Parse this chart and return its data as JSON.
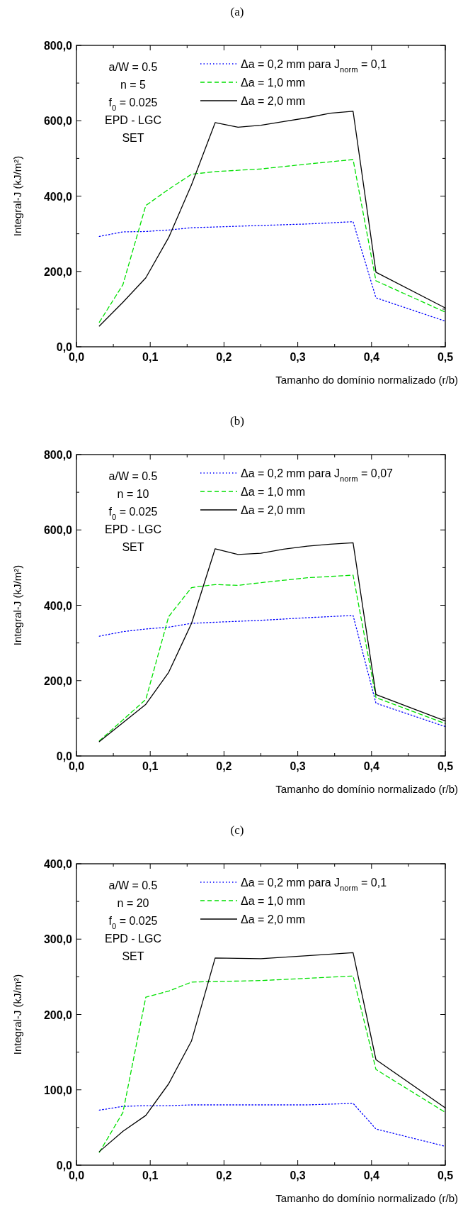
{
  "chart_data": [
    {
      "type": "line",
      "title": "(a)",
      "xlabel": "Tamanho do domínio normalizado (r/b)",
      "ylabel": "Integral-J (kJ/m²)",
      "legend": "top right",
      "annotations": [
        "a/W = 0.5",
        "n = 5",
        "f$_{0}$ = 0.025",
        "EPD - LGC",
        "SET"
      ],
      "xlim": [
        0,
        0.5
      ],
      "xticks": [
        {
          "value": 0,
          "label": "0,0"
        },
        {
          "value": 0.05,
          "label": null
        },
        {
          "value": 0.1,
          "label": "0,1"
        },
        {
          "value": 0.15,
          "label": null
        },
        {
          "value": 0.2,
          "label": "0,2"
        },
        {
          "value": 0.25,
          "label": null
        },
        {
          "value": 0.3,
          "label": "0,3"
        },
        {
          "value": 0.35,
          "label": null
        },
        {
          "value": 0.4,
          "label": "0,4"
        },
        {
          "value": 0.45,
          "label": null
        },
        {
          "value": 0.5,
          "label": "0,5"
        }
      ],
      "ylim": [
        0,
        800
      ],
      "yticks": [
        {
          "value": 0,
          "label": "0,0"
        },
        {
          "value": 100,
          "label": null
        },
        {
          "value": 200,
          "label": "200,0"
        },
        {
          "value": 300,
          "label": null
        },
        {
          "value": 400,
          "label": "400,0"
        },
        {
          "value": 500,
          "label": null
        },
        {
          "value": 600,
          "label": "600,0"
        },
        {
          "value": 700,
          "label": null
        },
        {
          "value": 800,
          "label": "800,0"
        }
      ],
      "series": [
        {
          "name": "Δa = 0,2 mm para J$_{norm}$ = 0,1",
          "color": "#0000ff",
          "line_style": "dotted",
          "x": [
            0.031,
            0.063,
            0.094,
            0.125,
            0.156,
            0.188,
            0.25,
            0.313,
            0.375,
            0.406,
            0.5
          ],
          "values": [
            293,
            305,
            306,
            310,
            316,
            318,
            322,
            326,
            332,
            130,
            68
          ]
        },
        {
          "name": "Δa = 1,0 mm",
          "color": "#00e000",
          "line_style": "dashed",
          "x": [
            0.031,
            0.063,
            0.094,
            0.125,
            0.156,
            0.188,
            0.25,
            0.313,
            0.375,
            0.406,
            0.5
          ],
          "values": [
            65,
            165,
            375,
            418,
            458,
            465,
            472,
            485,
            497,
            175,
            92
          ]
        },
        {
          "name": "Δa = 2,0 mm",
          "color": "#000000",
          "line_style": "solid",
          "x": [
            0.031,
            0.063,
            0.094,
            0.125,
            0.156,
            0.188,
            0.219,
            0.25,
            0.281,
            0.313,
            0.344,
            0.375,
            0.406,
            0.5
          ],
          "values": [
            55,
            118,
            183,
            290,
            430,
            595,
            583,
            588,
            598,
            608,
            620,
            625,
            198,
            103
          ]
        }
      ]
    },
    {
      "type": "line",
      "title": "(b)",
      "xlabel": "Tamanho do domínio normalizado (r/b)",
      "ylabel": "Integral-J (kJ/m²)",
      "legend": "top right",
      "annotations": [
        "a/W = 0.5",
        "n = 10",
        "f$_{0}$ = 0.025",
        "EPD - LGC",
        "SET"
      ],
      "xlim": [
        0,
        0.5
      ],
      "xticks": [
        {
          "value": 0,
          "label": "0,0"
        },
        {
          "value": 0.05,
          "label": null
        },
        {
          "value": 0.1,
          "label": "0,1"
        },
        {
          "value": 0.15,
          "label": null
        },
        {
          "value": 0.2,
          "label": "0,2"
        },
        {
          "value": 0.25,
          "label": null
        },
        {
          "value": 0.3,
          "label": "0,3"
        },
        {
          "value": 0.35,
          "label": null
        },
        {
          "value": 0.4,
          "label": "0,4"
        },
        {
          "value": 0.45,
          "label": null
        },
        {
          "value": 0.5,
          "label": "0,5"
        }
      ],
      "ylim": [
        0,
        800
      ],
      "yticks": [
        {
          "value": 0,
          "label": "0,0"
        },
        {
          "value": 100,
          "label": null
        },
        {
          "value": 200,
          "label": "200,0"
        },
        {
          "value": 300,
          "label": null
        },
        {
          "value": 400,
          "label": "400,0"
        },
        {
          "value": 500,
          "label": null
        },
        {
          "value": 600,
          "label": "600,0"
        },
        {
          "value": 700,
          "label": null
        },
        {
          "value": 800,
          "label": "800,0"
        }
      ],
      "series": [
        {
          "name": "Δa = 0,2 mm para J$_{norm}$ = 0,07",
          "color": "#0000ff",
          "line_style": "dotted",
          "x": [
            0.031,
            0.063,
            0.094,
            0.125,
            0.156,
            0.188,
            0.25,
            0.313,
            0.375,
            0.406,
            0.5
          ],
          "values": [
            318,
            330,
            337,
            342,
            352,
            355,
            360,
            367,
            373,
            140,
            78
          ]
        },
        {
          "name": "Δa = 1,0 mm",
          "color": "#00e000",
          "line_style": "dashed",
          "x": [
            0.031,
            0.094,
            0.125,
            0.156,
            0.188,
            0.219,
            0.25,
            0.313,
            0.375,
            0.406,
            0.5
          ],
          "values": [
            40,
            150,
            370,
            447,
            455,
            453,
            460,
            473,
            480,
            155,
            86
          ]
        },
        {
          "name": "Δa = 2,0 mm",
          "color": "#000000",
          "line_style": "solid",
          "x": [
            0.031,
            0.094,
            0.125,
            0.156,
            0.188,
            0.219,
            0.25,
            0.281,
            0.313,
            0.344,
            0.375,
            0.406,
            0.5
          ],
          "values": [
            38,
            137,
            222,
            352,
            550,
            535,
            538,
            549,
            557,
            562,
            566,
            163,
            93
          ]
        }
      ]
    },
    {
      "type": "line",
      "title": "(c)",
      "xlabel": "Tamanho do domínio normalizado (r/b)",
      "ylabel": "Integral-J (kJ/m²)",
      "legend": "top right",
      "annotations": [
        "a/W = 0.5",
        "n = 20",
        "f$_{0}$ = 0.025",
        "EPD - LGC",
        "SET"
      ],
      "xlim": [
        0,
        0.5
      ],
      "xticks": [
        {
          "value": 0,
          "label": "0,0"
        },
        {
          "value": 0.05,
          "label": null
        },
        {
          "value": 0.1,
          "label": "0,1"
        },
        {
          "value": 0.15,
          "label": null
        },
        {
          "value": 0.2,
          "label": "0,2"
        },
        {
          "value": 0.25,
          "label": null
        },
        {
          "value": 0.3,
          "label": "0,3"
        },
        {
          "value": 0.35,
          "label": null
        },
        {
          "value": 0.4,
          "label": "0,4"
        },
        {
          "value": 0.45,
          "label": null
        },
        {
          "value": 0.5,
          "label": "0,5"
        }
      ],
      "ylim": [
        0,
        400
      ],
      "yticks": [
        {
          "value": 0,
          "label": "0,0"
        },
        {
          "value": 50,
          "label": null
        },
        {
          "value": 100,
          "label": "100,0"
        },
        {
          "value": 150,
          "label": null
        },
        {
          "value": 200,
          "label": "200,0"
        },
        {
          "value": 250,
          "label": null
        },
        {
          "value": 300,
          "label": "300,0"
        },
        {
          "value": 350,
          "label": null
        },
        {
          "value": 400,
          "label": "400,0"
        }
      ],
      "series": [
        {
          "name": "Δa = 0,2 mm para J$_{norm}$ = 0,1",
          "color": "#0000ff",
          "line_style": "dotted",
          "x": [
            0.031,
            0.063,
            0.094,
            0.125,
            0.156,
            0.25,
            0.313,
            0.375,
            0.406,
            0.5
          ],
          "values": [
            73,
            78,
            79,
            79,
            80,
            80,
            80,
            82,
            48,
            25
          ]
        },
        {
          "name": "Δa = 1,0 mm",
          "color": "#00e000",
          "line_style": "dashed",
          "x": [
            0.031,
            0.063,
            0.094,
            0.125,
            0.156,
            0.25,
            0.375,
            0.406,
            0.5
          ],
          "values": [
            17,
            70,
            223,
            231,
            243,
            245,
            251,
            127,
            70
          ]
        },
        {
          "name": "Δa = 2,0 mm",
          "color": "#000000",
          "line_style": "solid",
          "x": [
            0.031,
            0.063,
            0.094,
            0.125,
            0.156,
            0.188,
            0.25,
            0.313,
            0.375,
            0.406,
            0.5
          ],
          "values": [
            18,
            45,
            66,
            108,
            165,
            275,
            274,
            278,
            282,
            140,
            76
          ]
        }
      ]
    }
  ]
}
